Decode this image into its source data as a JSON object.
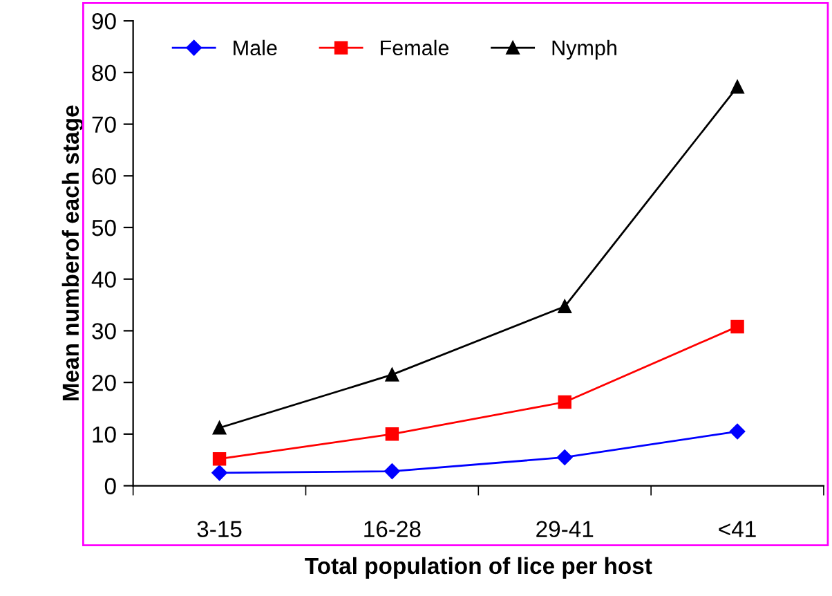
{
  "chart_data": {
    "type": "line",
    "xlabel": "Total population of lice per host",
    "ylabel": "Mean numberof each stage",
    "categories": [
      "3-15",
      "16-28",
      "29-41",
      "<41"
    ],
    "series": [
      {
        "name": "Male",
        "color": "#0000ff",
        "marker": "diamond",
        "values": [
          2.5,
          2.8,
          5.5,
          10.5
        ]
      },
      {
        "name": "Female",
        "color": "#ff0000",
        "marker": "square",
        "values": [
          5.2,
          10,
          16.2,
          30.8
        ]
      },
      {
        "name": "Nymph",
        "color": "#000000",
        "marker": "triangle",
        "values": [
          11.2,
          21.5,
          34.7,
          77.2
        ]
      }
    ],
    "ylim": [
      0,
      90
    ],
    "yticks": [
      0,
      10,
      20,
      30,
      40,
      50,
      60,
      70,
      80,
      90
    ],
    "grid": false,
    "legend": "top left",
    "line_style": "solid"
  }
}
